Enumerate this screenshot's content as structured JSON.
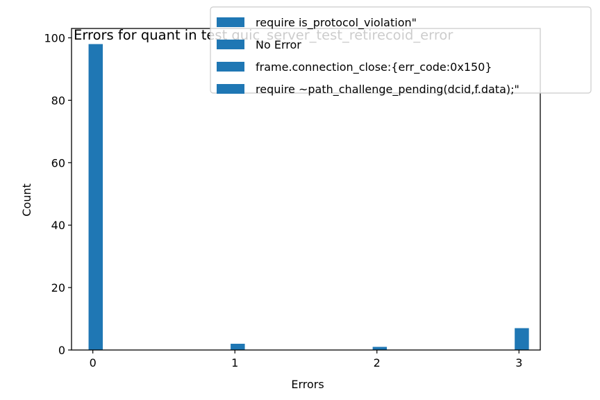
{
  "chart_data": {
    "type": "bar",
    "title": "Errors for quant in test quic_server_test_retirecoid_error",
    "xlabel": "Errors",
    "ylabel": "Count",
    "xlim": [
      -0.15,
      3.15
    ],
    "ylim": [
      0,
      103
    ],
    "xticks": [
      "0",
      "1",
      "2",
      "3"
    ],
    "yticks": [
      "0",
      "20",
      "40",
      "60",
      "80",
      "100"
    ],
    "bar_color": "#1f77b4",
    "legend_position": "upper-right, overlapping title",
    "series": [
      {
        "name": "require is_protocol_violation\"",
        "x": 0,
        "value": 98
      },
      {
        "name": "No Error",
        "x": 1,
        "value": 2
      },
      {
        "name": "frame.connection_close:{err_code:0x150}",
        "x": 2,
        "value": 1
      },
      {
        "name": "require ~path_challenge_pending(dcid,f.data);\"",
        "x": 3,
        "value": 7
      }
    ]
  }
}
